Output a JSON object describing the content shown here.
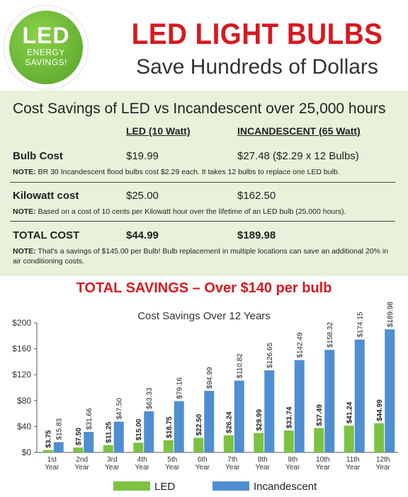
{
  "badge": {
    "line1": "LED",
    "line2": "ENERGY",
    "line3": "SAVINGS!"
  },
  "header": {
    "title": "LED LIGHT BULBS",
    "subtitle": "Save Hundreds of Dollars"
  },
  "panel": {
    "title": "Cost Savings of LED vs Incandescent over 25,000 hours",
    "col_led": "LED (10 Watt)",
    "col_inc": "INCANDESCENT (65 Watt)",
    "rows": [
      {
        "label": "Bulb Cost",
        "led": "$19.99",
        "inc": "$27.48  ($2.29 x 12 Bulbs)",
        "note_label": "NOTE:",
        "note": "BR 30 Incandescent flood bulbs cost $2.29 each. It takes 12 bulbs to replace one LED bulb."
      },
      {
        "label": "Kilowatt cost",
        "led": "$25.00",
        "inc": "$162.50",
        "note_label": "NOTE:",
        "note": "Based on a cost of 10 cents per Kilowatt hour over the lifetime of an LED bulb (25,000 hours)."
      },
      {
        "label": "TOTAL COST",
        "led": "$44.99",
        "inc": "$189.98",
        "note_label": "NOTE:",
        "note": "That's a savings of $145.00 per Bulb! Bulb replacement in multiple locations can save an additional 20% in air conditioning costs."
      }
    ]
  },
  "savings_headline": "TOTAL SAVINGS – Over $140 per bulb",
  "chart_data": {
    "type": "bar",
    "title": "Cost Savings Over 12 Years",
    "categories": [
      "1st Year",
      "2nd Year",
      "3rd Year",
      "4th Year",
      "5th Year",
      "6th Year",
      "7th Year",
      "8th Year",
      "9th Year",
      "10th Year",
      "11th Year",
      "12th Year"
    ],
    "category_lines": [
      [
        "1st",
        "Year"
      ],
      [
        "2nd",
        "Year"
      ],
      [
        "3rd",
        "Year"
      ],
      [
        "4th",
        "Year"
      ],
      [
        "5th",
        "Year"
      ],
      [
        "6th",
        "Year"
      ],
      [
        "7th",
        "Year"
      ],
      [
        "8th",
        "Year"
      ],
      [
        "9th",
        "Year"
      ],
      [
        "10th",
        "Year"
      ],
      [
        "11th",
        "Year"
      ],
      [
        "12th",
        "Year"
      ]
    ],
    "series": [
      {
        "name": "LED",
        "color": "#7cc242",
        "values": [
          3.75,
          7.5,
          11.25,
          15.0,
          18.75,
          22.5,
          26.24,
          29.99,
          33.74,
          37.49,
          41.24,
          44.99
        ],
        "labels": [
          "$3.75",
          "$7.50",
          "$11.25",
          "$15.00",
          "$18.75",
          "$22.50",
          "$26.24",
          "$29.99",
          "$33.74",
          "$37.49",
          "$41.24",
          "$44.99"
        ]
      },
      {
        "name": "Incandescent",
        "color": "#4f8fd1",
        "values": [
          15.83,
          31.66,
          47.5,
          63.33,
          79.16,
          94.99,
          110.82,
          126.65,
          142.49,
          158.32,
          174.15,
          189.98
        ],
        "labels": [
          "$15.83",
          "$31.66",
          "$47.50",
          "$63.33",
          "$79.16",
          "$94.99",
          "$110.82",
          "$126.65",
          "$142.49",
          "$158.32",
          "$174.15",
          "$189.98"
        ]
      }
    ],
    "ylim": [
      0,
      200
    ],
    "yticks": [
      0,
      40,
      80,
      120,
      160,
      200
    ],
    "ytick_labels": [
      "$0",
      "$40",
      "$80",
      "$120",
      "$160",
      "$200"
    ],
    "legend_position": "bottom",
    "grid": false
  },
  "colors": {
    "accent_red": "#d71920",
    "panel_green": "#e8f2da",
    "led_green": "#7cc242",
    "inc_blue": "#4f8fd1"
  }
}
